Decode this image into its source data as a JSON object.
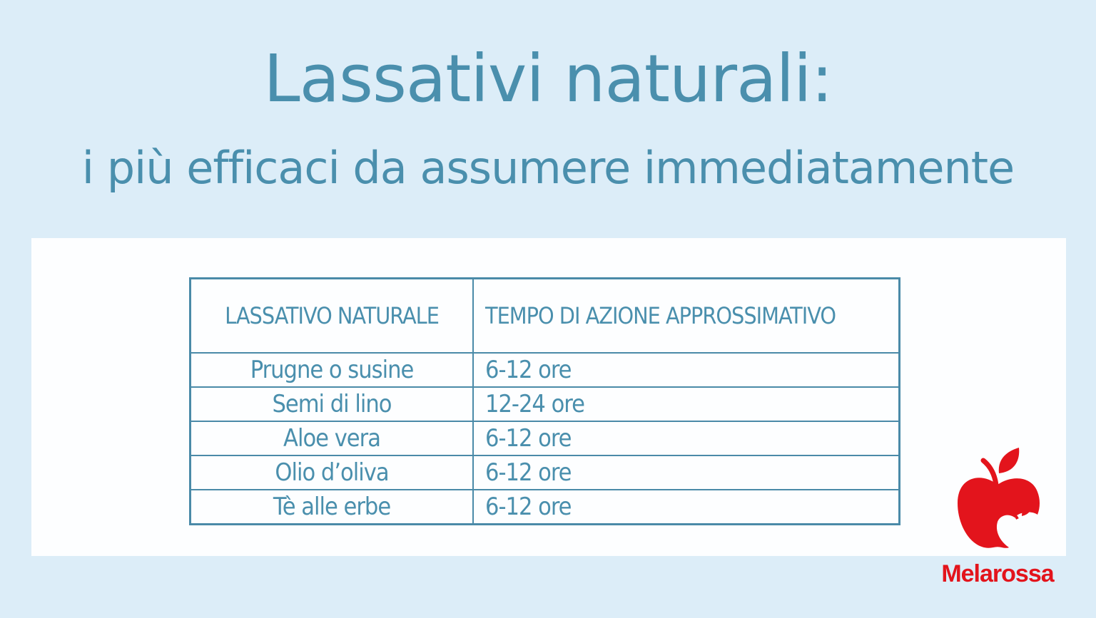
{
  "header": {
    "title": "Lassativi naturali:",
    "subtitle": "i più efficaci da assumere immediatamente"
  },
  "table": {
    "columns": [
      "LASSATIVO NATURALE",
      "TEMPO DI AZIONE APPROSSIMATIVO"
    ],
    "rows": [
      [
        "Prugne o susine",
        "6-12 ore"
      ],
      [
        "Semi di lino",
        "12-24 ore"
      ],
      [
        "Aloe vera",
        "6-12 ore"
      ],
      [
        "Olio d’oliva",
        "6-12 ore"
      ],
      [
        "Tè alle erbe",
        "6-12 ore"
      ]
    ]
  },
  "brand": {
    "name": "Melarossa",
    "logo_icon": "apple-icon",
    "color": "#e3141c"
  },
  "colors": {
    "text": "#4a8fad",
    "background": "#dcedf8",
    "border": "#4a8aa8"
  }
}
